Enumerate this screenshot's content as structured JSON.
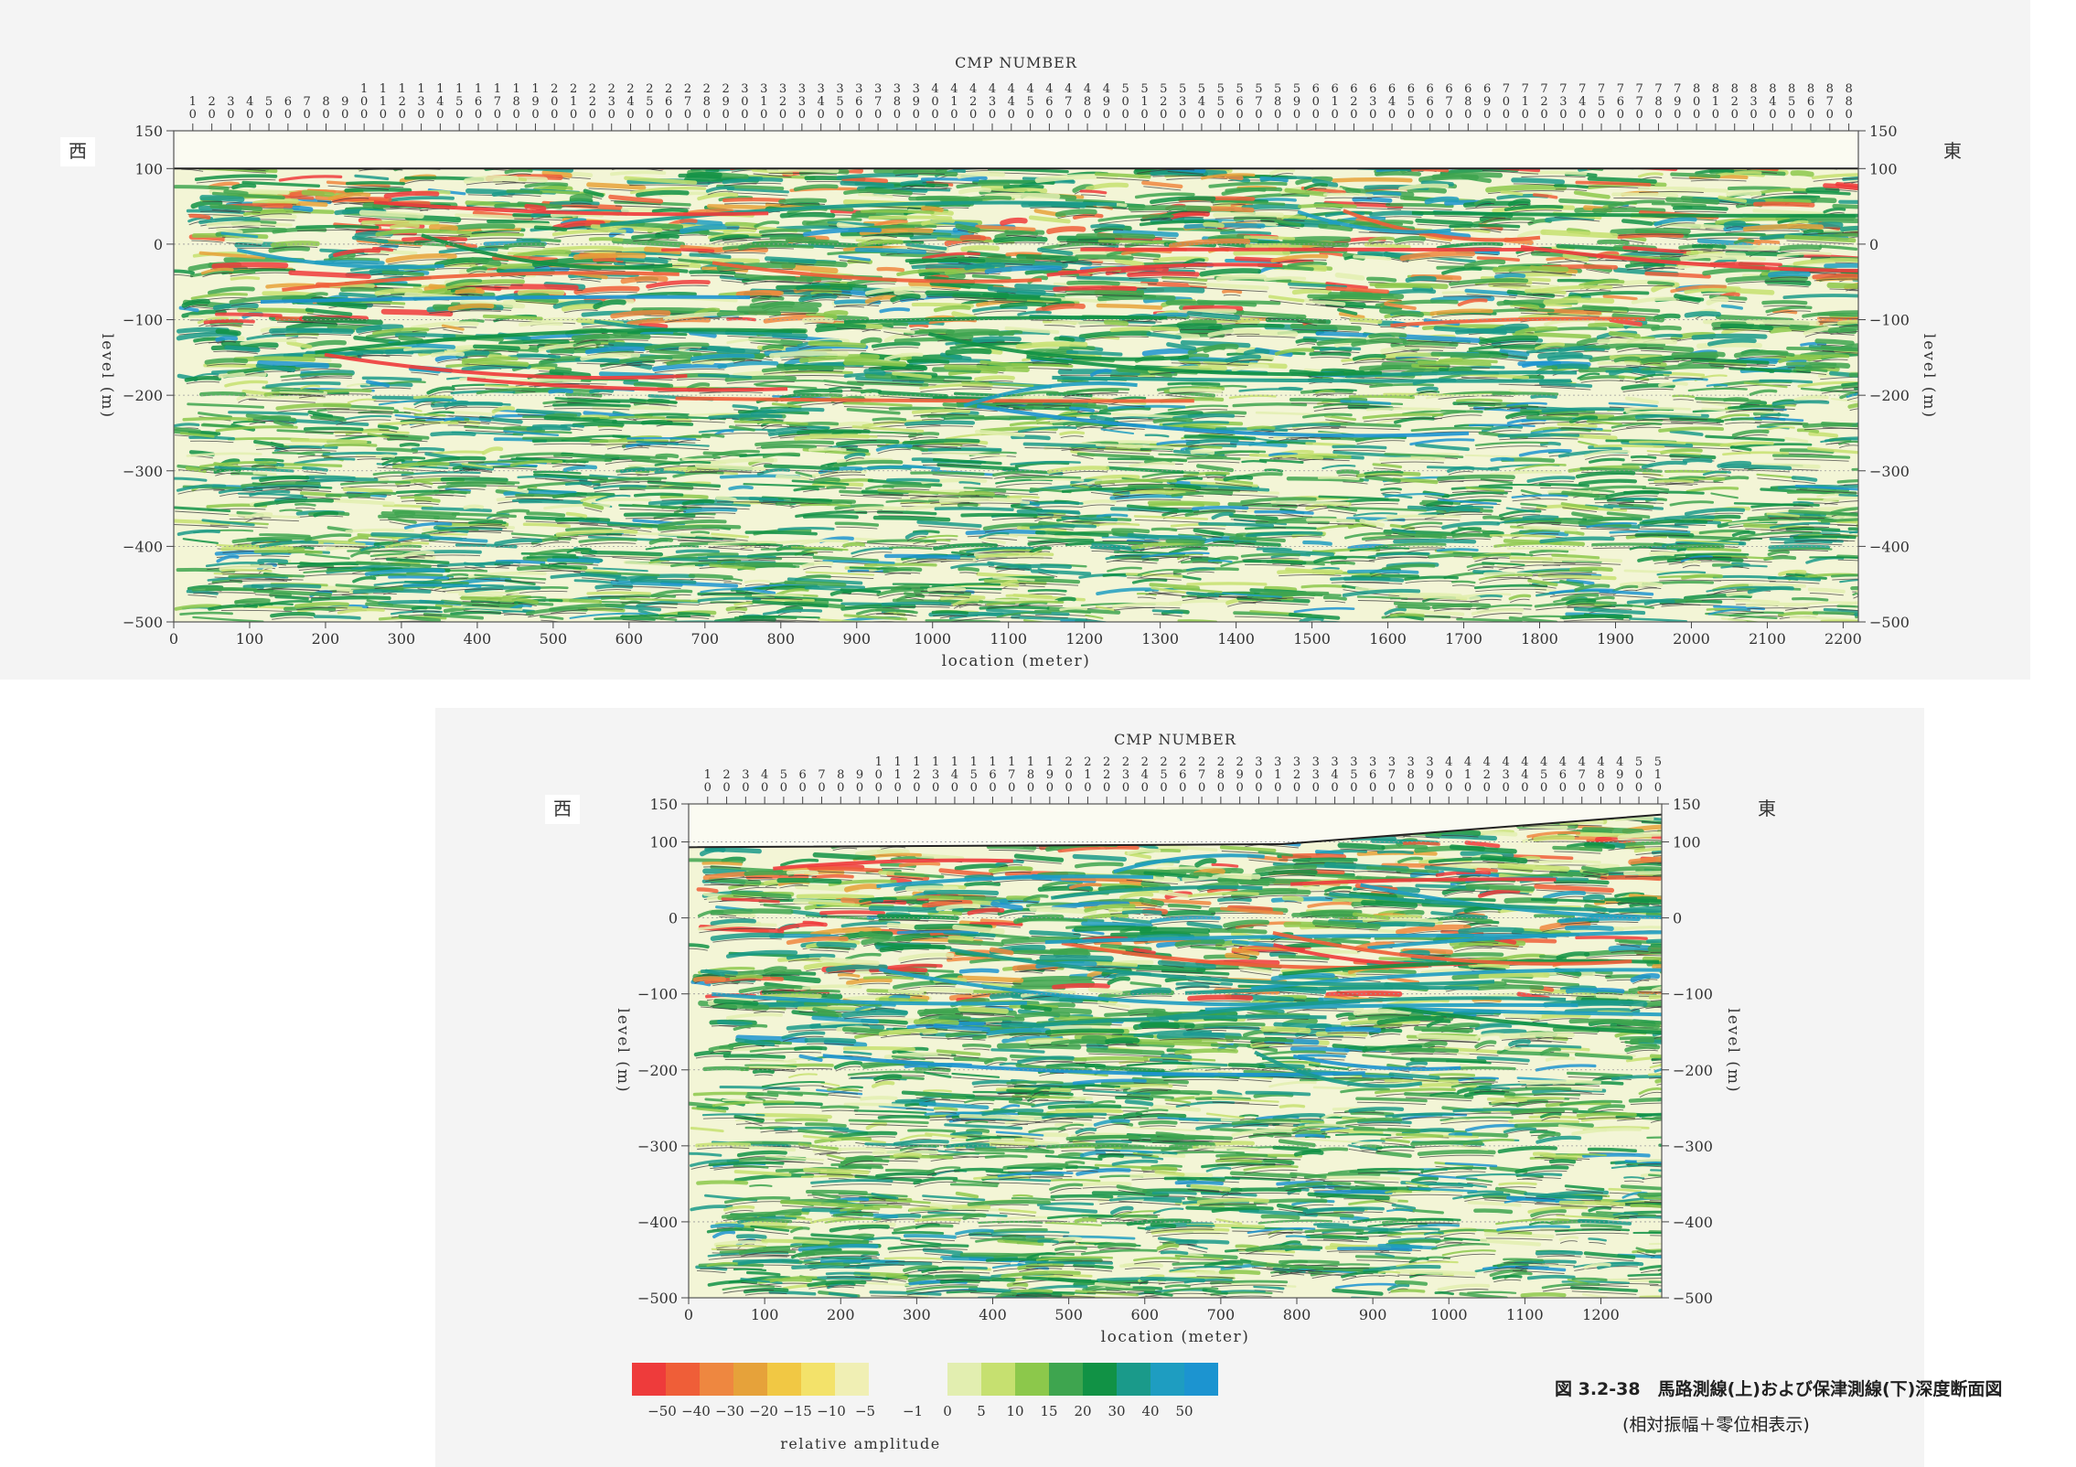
{
  "chart_data": [
    {
      "type": "heatmap",
      "panel": "top",
      "title": "CMP NUMBER",
      "xlabel": "location (meter)",
      "ylabel": "level (m)",
      "xlim": [
        0,
        2220
      ],
      "ylim": [
        -500,
        150
      ],
      "x_ticks": [
        0,
        100,
        200,
        300,
        400,
        500,
        600,
        700,
        800,
        900,
        1000,
        1100,
        1200,
        1300,
        1400,
        1500,
        1600,
        1700,
        1800,
        1900,
        2000,
        2100,
        2200
      ],
      "y_ticks": [
        150,
        100,
        0,
        -100,
        -200,
        -300,
        -400,
        -500
      ],
      "cmp_ticks": [
        10,
        20,
        30,
        40,
        50,
        60,
        70,
        80,
        90,
        100,
        110,
        120,
        130,
        140,
        150,
        160,
        170,
        180,
        190,
        200,
        210,
        220,
        230,
        240,
        250,
        260,
        270,
        280,
        290,
        300,
        310,
        320,
        330,
        340,
        350,
        360,
        370,
        380,
        390,
        400,
        410,
        420,
        430,
        440,
        450,
        460,
        470,
        480,
        490,
        500,
        510,
        520,
        530,
        540,
        550,
        560,
        570,
        580,
        590,
        600,
        610,
        620,
        630,
        640,
        650,
        660,
        670,
        680,
        690,
        700,
        710,
        720,
        730,
        740,
        750,
        760,
        770,
        780,
        790,
        800,
        810,
        820,
        830,
        840,
        850,
        860,
        870,
        880
      ],
      "cmp_range": [
        0,
        885
      ],
      "surface": [
        [
          0,
          100
        ],
        [
          2220,
          100
        ]
      ],
      "left_label": "西",
      "right_label": "東",
      "grid": true
    },
    {
      "type": "heatmap",
      "panel": "bottom",
      "title": "CMP NUMBER",
      "xlabel": "location (meter)",
      "ylabel": "level (m)",
      "xlim": [
        0,
        1280
      ],
      "ylim": [
        -500,
        150
      ],
      "x_ticks": [
        0,
        100,
        200,
        300,
        400,
        500,
        600,
        700,
        800,
        900,
        1000,
        1100,
        1200
      ],
      "y_ticks": [
        150,
        100,
        0,
        -100,
        -200,
        -300,
        -400,
        -500
      ],
      "cmp_ticks": [
        10,
        20,
        30,
        40,
        50,
        60,
        70,
        80,
        90,
        100,
        110,
        120,
        130,
        140,
        150,
        160,
        170,
        180,
        190,
        200,
        210,
        220,
        230,
        240,
        250,
        260,
        270,
        280,
        290,
        300,
        310,
        320,
        330,
        340,
        350,
        360,
        370,
        380,
        390,
        400,
        410,
        420,
        430,
        440,
        450,
        460,
        470,
        480,
        490,
        500,
        510
      ],
      "cmp_range": [
        0,
        512
      ],
      "surface": [
        [
          0,
          93
        ],
        [
          780,
          97
        ],
        [
          1280,
          136
        ]
      ],
      "left_label": "西",
      "right_label": "東",
      "grid": true
    }
  ],
  "colorbar": {
    "label": "relative amplitude",
    "tick_labels": [
      "-50",
      "-40",
      "-30",
      "-20",
      "-15",
      "-10",
      "-5",
      "-1",
      "0",
      "5",
      "10",
      "15",
      "20",
      "30",
      "40",
      "50"
    ],
    "negative_colors": [
      "#ee3b3b",
      "#ef5e38",
      "#ee8740",
      "#e6a23a",
      "#f1c844",
      "#f3e26a",
      "#f0efb4"
    ],
    "positive_colors": [
      "#e2eeb0",
      "#c6e070",
      "#8cc84b",
      "#3ea54f",
      "#119245",
      "#1a9a8a",
      "#1e9dc1",
      "#1c94d0"
    ]
  },
  "caption": {
    "line1": "図 3.2-38　馬路測線(上)および保津測線(下)深度断面図",
    "line2": "(相対振幅＋零位相表示)"
  }
}
